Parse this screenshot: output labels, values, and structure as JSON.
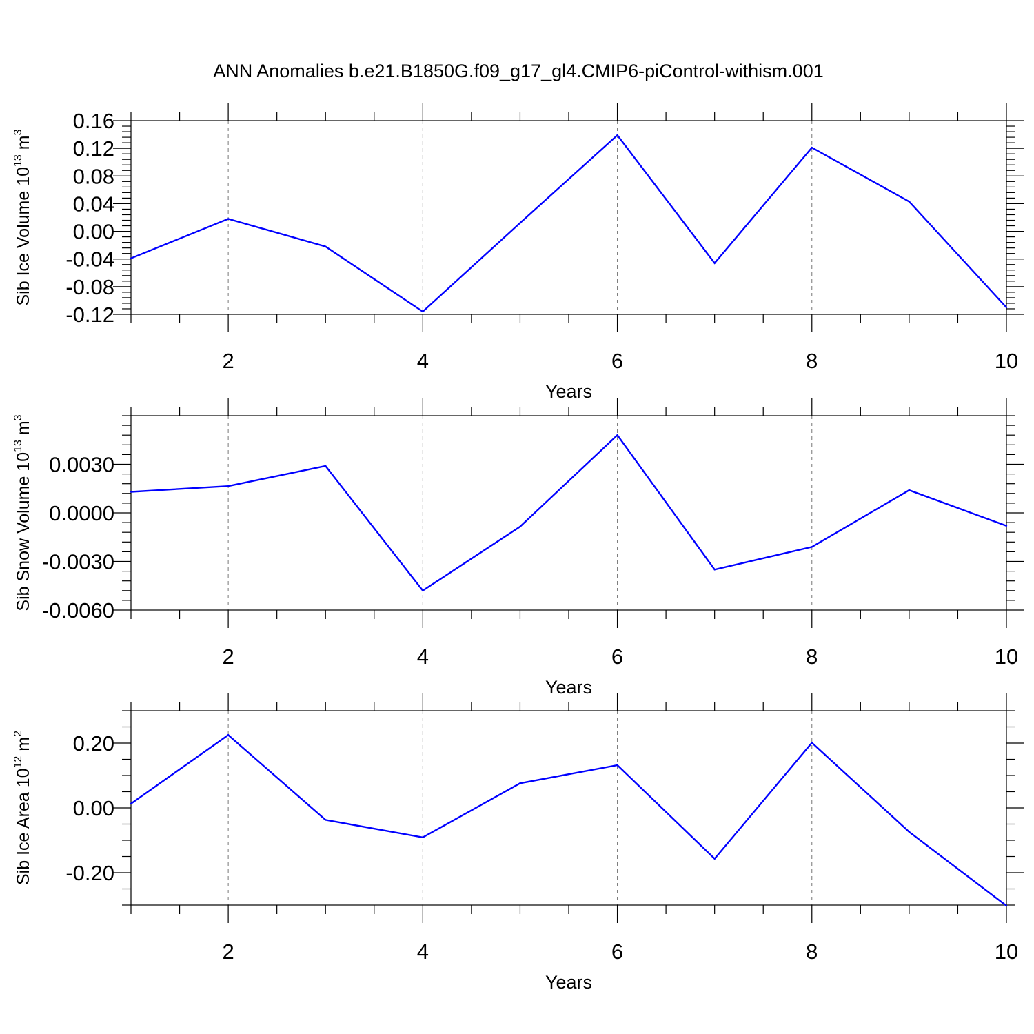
{
  "title": "ANN Anomalies b.e21.B1850G.f09_g17_gl4.CMIP6-piControl-withism.001",
  "chart_data": [
    {
      "type": "line",
      "xlabel": "Years",
      "ylabel": {
        "base": "Sib Ice Volume 10",
        "exp": "13",
        "unit": " m",
        "unit_exp": "3"
      },
      "xlim": [
        1,
        10
      ],
      "ylim": [
        -0.12,
        0.16
      ],
      "x_ticks": [
        2,
        4,
        6,
        8,
        10
      ],
      "x_tick_labels": [
        "2",
        "4",
        "6",
        "8",
        "10"
      ],
      "y_ticks": [
        -0.12,
        -0.08,
        -0.04,
        0.0,
        0.04,
        0.08,
        0.12,
        0.16
      ],
      "y_tick_labels": [
        "-0.12",
        "-0.08",
        "-0.04",
        "0.00",
        "0.04",
        "0.08",
        "0.12",
        "0.16"
      ],
      "y_minor_step": 0.008,
      "x": [
        1,
        2,
        3,
        4,
        5,
        6,
        7,
        8,
        9,
        10
      ],
      "series": [
        {
          "values": [
            -0.039,
            0.018,
            -0.022,
            -0.116,
            0.012,
            0.139,
            -0.046,
            0.121,
            0.043,
            -0.11
          ],
          "color": "#0000ff"
        }
      ],
      "grid": "vertical-dashed-at-major-x"
    },
    {
      "type": "line",
      "xlabel": "Years",
      "ylabel": {
        "base": "Sib Snow Volume 10",
        "exp": "13",
        "unit": " m",
        "unit_exp": "3"
      },
      "xlim": [
        1,
        10
      ],
      "ylim": [
        -0.006,
        0.006
      ],
      "x_ticks": [
        2,
        4,
        6,
        8,
        10
      ],
      "x_tick_labels": [
        "2",
        "4",
        "6",
        "8",
        "10"
      ],
      "y_ticks": [
        -0.006,
        -0.003,
        0.0,
        0.003
      ],
      "y_tick_labels": [
        "-0.0060",
        "-0.0030",
        "0.0000",
        "0.0030"
      ],
      "y_minor_step": 0.0006,
      "x": [
        1,
        2,
        3,
        4,
        5,
        6,
        7,
        8,
        9,
        10
      ],
      "series": [
        {
          "values": [
            0.0013,
            0.00165,
            0.0029,
            -0.0048,
            -0.00085,
            0.0048,
            -0.0035,
            -0.0021,
            0.0014,
            -0.0008
          ],
          "color": "#0000ff"
        }
      ],
      "grid": "vertical-dashed-at-major-x"
    },
    {
      "type": "line",
      "xlabel": "Years",
      "ylabel": {
        "base": "Sib Ice Area 10",
        "exp": "12",
        "unit": " m",
        "unit_exp": "2"
      },
      "xlim": [
        1,
        10
      ],
      "ylim": [
        -0.3,
        0.3
      ],
      "x_ticks": [
        2,
        4,
        6,
        8,
        10
      ],
      "x_tick_labels": [
        "2",
        "4",
        "6",
        "8",
        "10"
      ],
      "y_ticks": [
        -0.2,
        0.0,
        0.2
      ],
      "y_tick_labels": [
        "-0.20",
        "0.00",
        "0.20"
      ],
      "y_minor_step": 0.05,
      "x": [
        1,
        2,
        3,
        4,
        5,
        6,
        7,
        8,
        9,
        10
      ],
      "series": [
        {
          "values": [
            0.013,
            0.225,
            -0.037,
            -0.091,
            0.076,
            0.132,
            -0.157,
            0.201,
            -0.074,
            -0.302
          ],
          "color": "#0000ff"
        }
      ],
      "grid": "vertical-dashed-at-major-x"
    }
  ]
}
